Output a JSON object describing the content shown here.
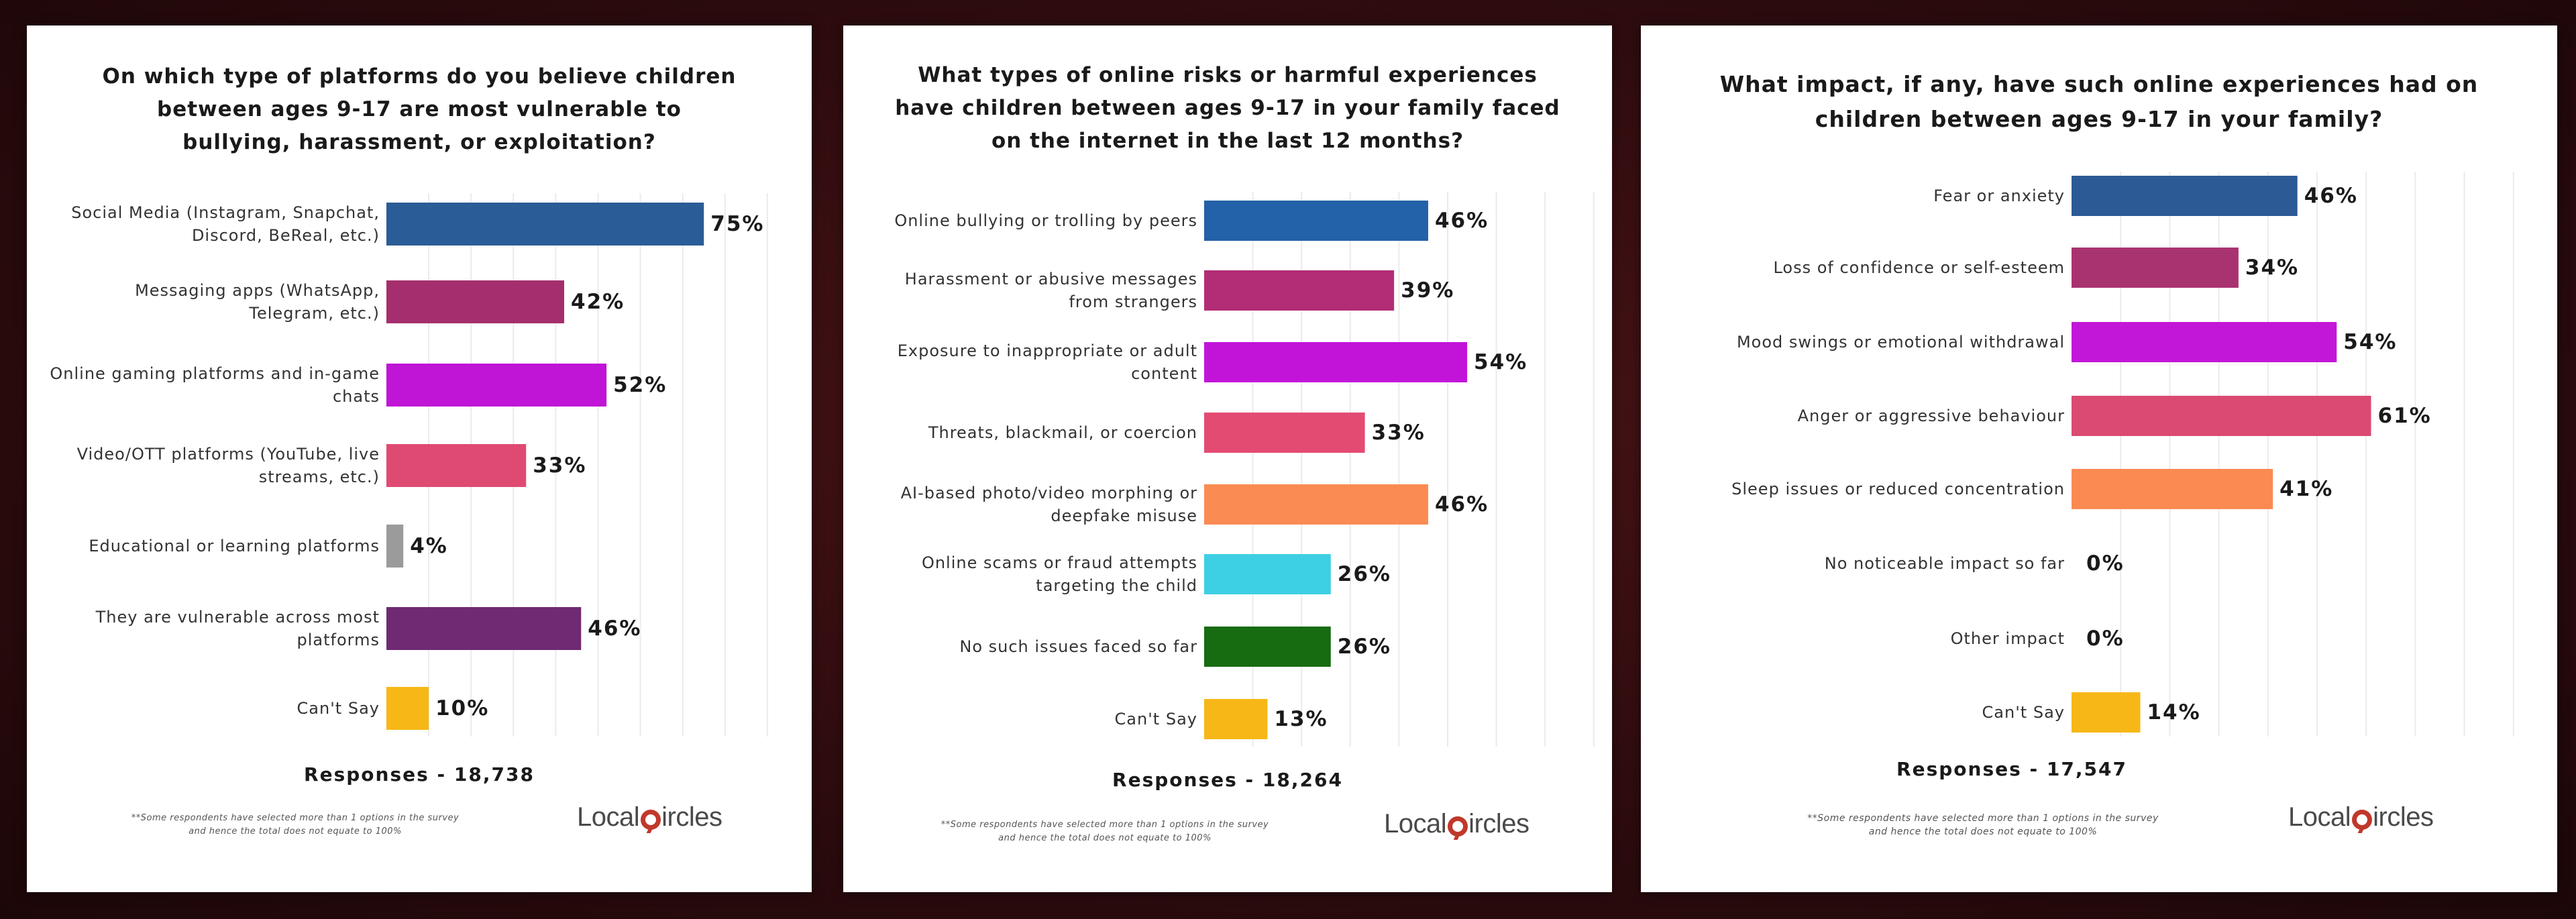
{
  "chart_data": [
    {
      "type": "bar",
      "orientation": "horizontal",
      "title": "On which type of platforms do you believe children between ages 9-17 are most vulnerable to bullying, harassment, or exploitation?",
      "categories": [
        "Social Media (Instagram, Snapchat, Discord, BeReal, etc.)",
        "Messaging apps (WhatsApp, Telegram, etc.)",
        "Online gaming platforms and in-game chats",
        "Video/OTT platforms (YouTube, live streams, etc.)",
        "Educational or learning platforms",
        "They are vulnerable across most platforms",
        "Can't Say"
      ],
      "values": [
        75,
        42,
        52,
        33,
        4,
        46,
        10
      ],
      "value_labels": [
        "75%",
        "42%",
        "52%",
        "33%",
        "4%",
        "46%",
        "10%"
      ],
      "colors": [
        "#2a5c97",
        "#a52f6e",
        "#c015d6",
        "#df4a72",
        "#9b9b9b",
        "#6f2a73",
        "#f7b717"
      ],
      "xlim": [
        0,
        100
      ],
      "grid": true,
      "responses": "Responses - 18,738"
    },
    {
      "type": "bar",
      "orientation": "horizontal",
      "title": "What types of online risks or harmful experiences have children between ages 9-17 in your family faced on the internet in the last 12 months?",
      "categories": [
        "Online bullying or trolling by peers",
        "Harassment or abusive messages from strangers",
        "Exposure to inappropriate or adult content",
        "Threats, blackmail, or coercion",
        "AI-based photo/video morphing or deepfake misuse",
        "Online scams or fraud attempts targeting the child",
        "No such issues faced so far",
        "Can't Say"
      ],
      "values": [
        46,
        39,
        54,
        33,
        46,
        26,
        26,
        13
      ],
      "value_labels": [
        "46%",
        "39%",
        "54%",
        "33%",
        "46%",
        "26%",
        "26%",
        "13%"
      ],
      "colors": [
        "#2361a8",
        "#b22d75",
        "#c214d8",
        "#e34b72",
        "#fa8b53",
        "#3dcfe4",
        "#176b11",
        "#f7b717"
      ],
      "xlim": [
        0,
        100
      ],
      "grid": true,
      "responses": "Responses - 18,264"
    },
    {
      "type": "bar",
      "orientation": "horizontal",
      "title": "What impact, if any, have such online experiences had on children between ages 9-17 in your family?",
      "categories": [
        "Fear or anxiety",
        "Loss of confidence or self-esteem",
        "Mood swings or emotional withdrawal",
        "Anger or aggressive behaviour",
        "Sleep issues or reduced concentration",
        "No noticeable impact so far",
        "Other impact",
        "Can't Say"
      ],
      "values": [
        46,
        34,
        54,
        61,
        41,
        0,
        0,
        14
      ],
      "value_labels": [
        "46%",
        "34%",
        "54%",
        "61%",
        "41%",
        "0%",
        "0%",
        "14%"
      ],
      "colors": [
        "#2c5a94",
        "#a93370",
        "#c217d8",
        "#da4a72",
        "#fb8a52",
        "#999999",
        "#999999",
        "#f7b717"
      ],
      "xlim": [
        0,
        100
      ],
      "grid": true,
      "responses": "Responses - 17,547"
    }
  ],
  "footnote_line1": "**Some respondents have selected more than 1 options in the survey",
  "footnote_line2": "and hence the total does not equate to 100%",
  "brand": {
    "prefix": "Local",
    "c": "c",
    "suffix": "ircles"
  }
}
